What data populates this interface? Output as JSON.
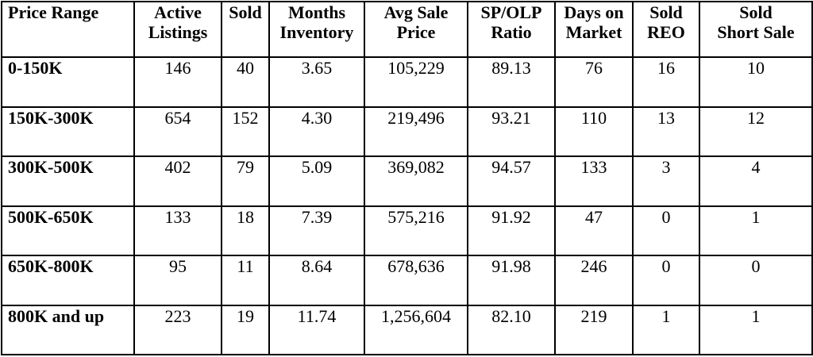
{
  "table": {
    "headers": [
      {
        "line1": "Price Range",
        "line2": ""
      },
      {
        "line1": "Active",
        "line2": "Listings"
      },
      {
        "line1": "Sold",
        "line2": ""
      },
      {
        "line1": "Months",
        "line2": "Inventory"
      },
      {
        "line1": "Avg Sale",
        "line2": "Price"
      },
      {
        "line1": "SP/OLP",
        "line2": "Ratio"
      },
      {
        "line1": "Days on",
        "line2": "Market"
      },
      {
        "line1": "Sold",
        "line2": "REO"
      },
      {
        "line1": "Sold",
        "line2": "Short Sale"
      }
    ],
    "rows": [
      [
        "0-150K",
        "146",
        "40",
        "3.65",
        "105,229",
        "89.13",
        "76",
        "16",
        "10"
      ],
      [
        "150K-300K",
        "654",
        "152",
        "4.30",
        "219,496",
        "93.21",
        "110",
        "13",
        "12"
      ],
      [
        "300K-500K",
        "402",
        "79",
        "5.09",
        "369,082",
        "94.57",
        "133",
        "3",
        "4"
      ],
      [
        "500K-650K",
        "133",
        "18",
        "7.39",
        "575,216",
        "91.92",
        "47",
        "0",
        "1"
      ],
      [
        "650K-800K",
        "95",
        "11",
        "8.64",
        "678,636",
        "91.98",
        "246",
        "0",
        "0"
      ],
      [
        "800K and up",
        "223",
        "19",
        "11.74",
        "1,256,604",
        "82.10",
        "219",
        "1",
        "1"
      ]
    ]
  }
}
